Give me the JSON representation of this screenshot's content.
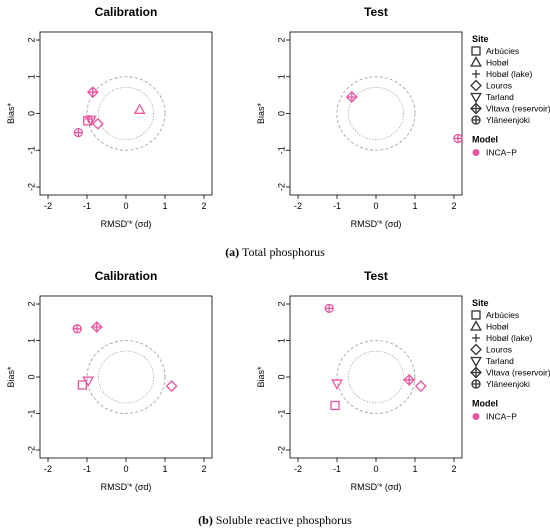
{
  "captions": [
    {
      "letter": "(a)",
      "text": "Total phosphorus"
    },
    {
      "letter": "(b)",
      "text": "Soluble reactive phosphorus"
    }
  ],
  "legend": {
    "site_title": "Site",
    "model_title": "Model",
    "sites": [
      {
        "name": "Arbúcies",
        "marker": "square"
      },
      {
        "name": "Hobøl",
        "marker": "triangle-up"
      },
      {
        "name": "Hobøl (lake)",
        "marker": "plus"
      },
      {
        "name": "Louros",
        "marker": "diamond"
      },
      {
        "name": "Tarland",
        "marker": "triangle-down"
      },
      {
        "name": "Vltava (reservoir)",
        "marker": "diamond-plus"
      },
      {
        "name": "Yläneenjoki",
        "marker": "circle-plus"
      }
    ],
    "models": [
      {
        "name": "INCA−P",
        "color": "#e8559f"
      }
    ]
  },
  "chart_data": [
    {
      "type": "scatter",
      "title": "Calibration",
      "xlabel": "RMSD'* (σd)",
      "ylabel": "Bias*",
      "xlim": [
        -2,
        2
      ],
      "ylim": [
        -2,
        2
      ],
      "xticks": [
        -2,
        -1,
        0,
        1,
        2
      ],
      "yticks": [
        -2,
        -1,
        0,
        1,
        2
      ],
      "reference_circles": [
        0.71,
        1.0
      ],
      "color": "#e8559f",
      "points": [
        {
          "site": "Arbúcies",
          "marker": "square",
          "x": -0.98,
          "y": -0.2
        },
        {
          "site": "Hobøl",
          "marker": "triangle-up",
          "x": 0.35,
          "y": 0.1
        },
        {
          "site": "Hobøl (lake)",
          "marker": "plus",
          "x": -0.95,
          "y": -0.15
        },
        {
          "site": "Louros",
          "marker": "diamond",
          "x": -0.72,
          "y": -0.28
        },
        {
          "site": "Tarland",
          "marker": "triangle-down",
          "x": -0.9,
          "y": -0.17
        },
        {
          "site": "Vltava (reservoir)",
          "marker": "diamond-plus",
          "x": -0.85,
          "y": 0.58
        },
        {
          "site": "Yläneenjoki",
          "marker": "circle-plus",
          "x": -1.22,
          "y": -0.52
        }
      ]
    },
    {
      "type": "scatter",
      "title": "Test",
      "xlabel": "RMSD'* (σd)",
      "ylabel": "Bias*",
      "xlim": [
        -2,
        2
      ],
      "ylim": [
        -2,
        2
      ],
      "xticks": [
        -2,
        -1,
        0,
        1,
        2
      ],
      "yticks": [
        -2,
        -1,
        0,
        1,
        2
      ],
      "reference_circles": [
        0.71,
        1.0
      ],
      "color": "#e8559f",
      "points": [
        {
          "site": "Vltava (reservoir)",
          "marker": "diamond-plus",
          "x": -0.62,
          "y": 0.45
        },
        {
          "site": "Yläneenjoki",
          "marker": "circle-plus",
          "x": 2.1,
          "y": -0.68
        }
      ]
    },
    {
      "type": "scatter",
      "title": "Calibration",
      "xlabel": "RMSD'* (σd)",
      "ylabel": "Bias*",
      "xlim": [
        -2,
        2
      ],
      "ylim": [
        -2,
        2
      ],
      "xticks": [
        -2,
        -1,
        0,
        1,
        2
      ],
      "yticks": [
        -2,
        -1,
        0,
        1,
        2
      ],
      "reference_circles": [
        0.71,
        1.0
      ],
      "color": "#e8559f",
      "points": [
        {
          "site": "Arbúcies",
          "marker": "square",
          "x": -1.12,
          "y": -0.22
        },
        {
          "site": "Tarland",
          "marker": "triangle-down",
          "x": -0.97,
          "y": -0.1
        },
        {
          "site": "Louros",
          "marker": "diamond",
          "x": 1.17,
          "y": -0.25
        },
        {
          "site": "Vltava (reservoir)",
          "marker": "diamond-plus",
          "x": -0.75,
          "y": 1.37
        },
        {
          "site": "Yläneenjoki",
          "marker": "circle-plus",
          "x": -1.25,
          "y": 1.32
        }
      ]
    },
    {
      "type": "scatter",
      "title": "Test",
      "xlabel": "RMSD'* (σd)",
      "ylabel": "Bias*",
      "xlim": [
        -2,
        2
      ],
      "ylim": [
        -2,
        2
      ],
      "xticks": [
        -2,
        -1,
        0,
        1,
        2
      ],
      "yticks": [
        -2,
        -1,
        0,
        1,
        2
      ],
      "reference_circles": [
        0.71,
        1.0
      ],
      "color": "#e8559f",
      "points": [
        {
          "site": "Arbúcies",
          "marker": "square",
          "x": -1.05,
          "y": -0.78
        },
        {
          "site": "Tarland",
          "marker": "triangle-down",
          "x": -1.0,
          "y": -0.18
        },
        {
          "site": "Louros",
          "marker": "diamond",
          "x": 1.15,
          "y": -0.25
        },
        {
          "site": "Vltava (reservoir)",
          "marker": "diamond-plus",
          "x": 0.85,
          "y": -0.08
        },
        {
          "site": "Yläneenjoki",
          "marker": "circle-plus",
          "x": -1.2,
          "y": 1.88
        }
      ]
    }
  ]
}
